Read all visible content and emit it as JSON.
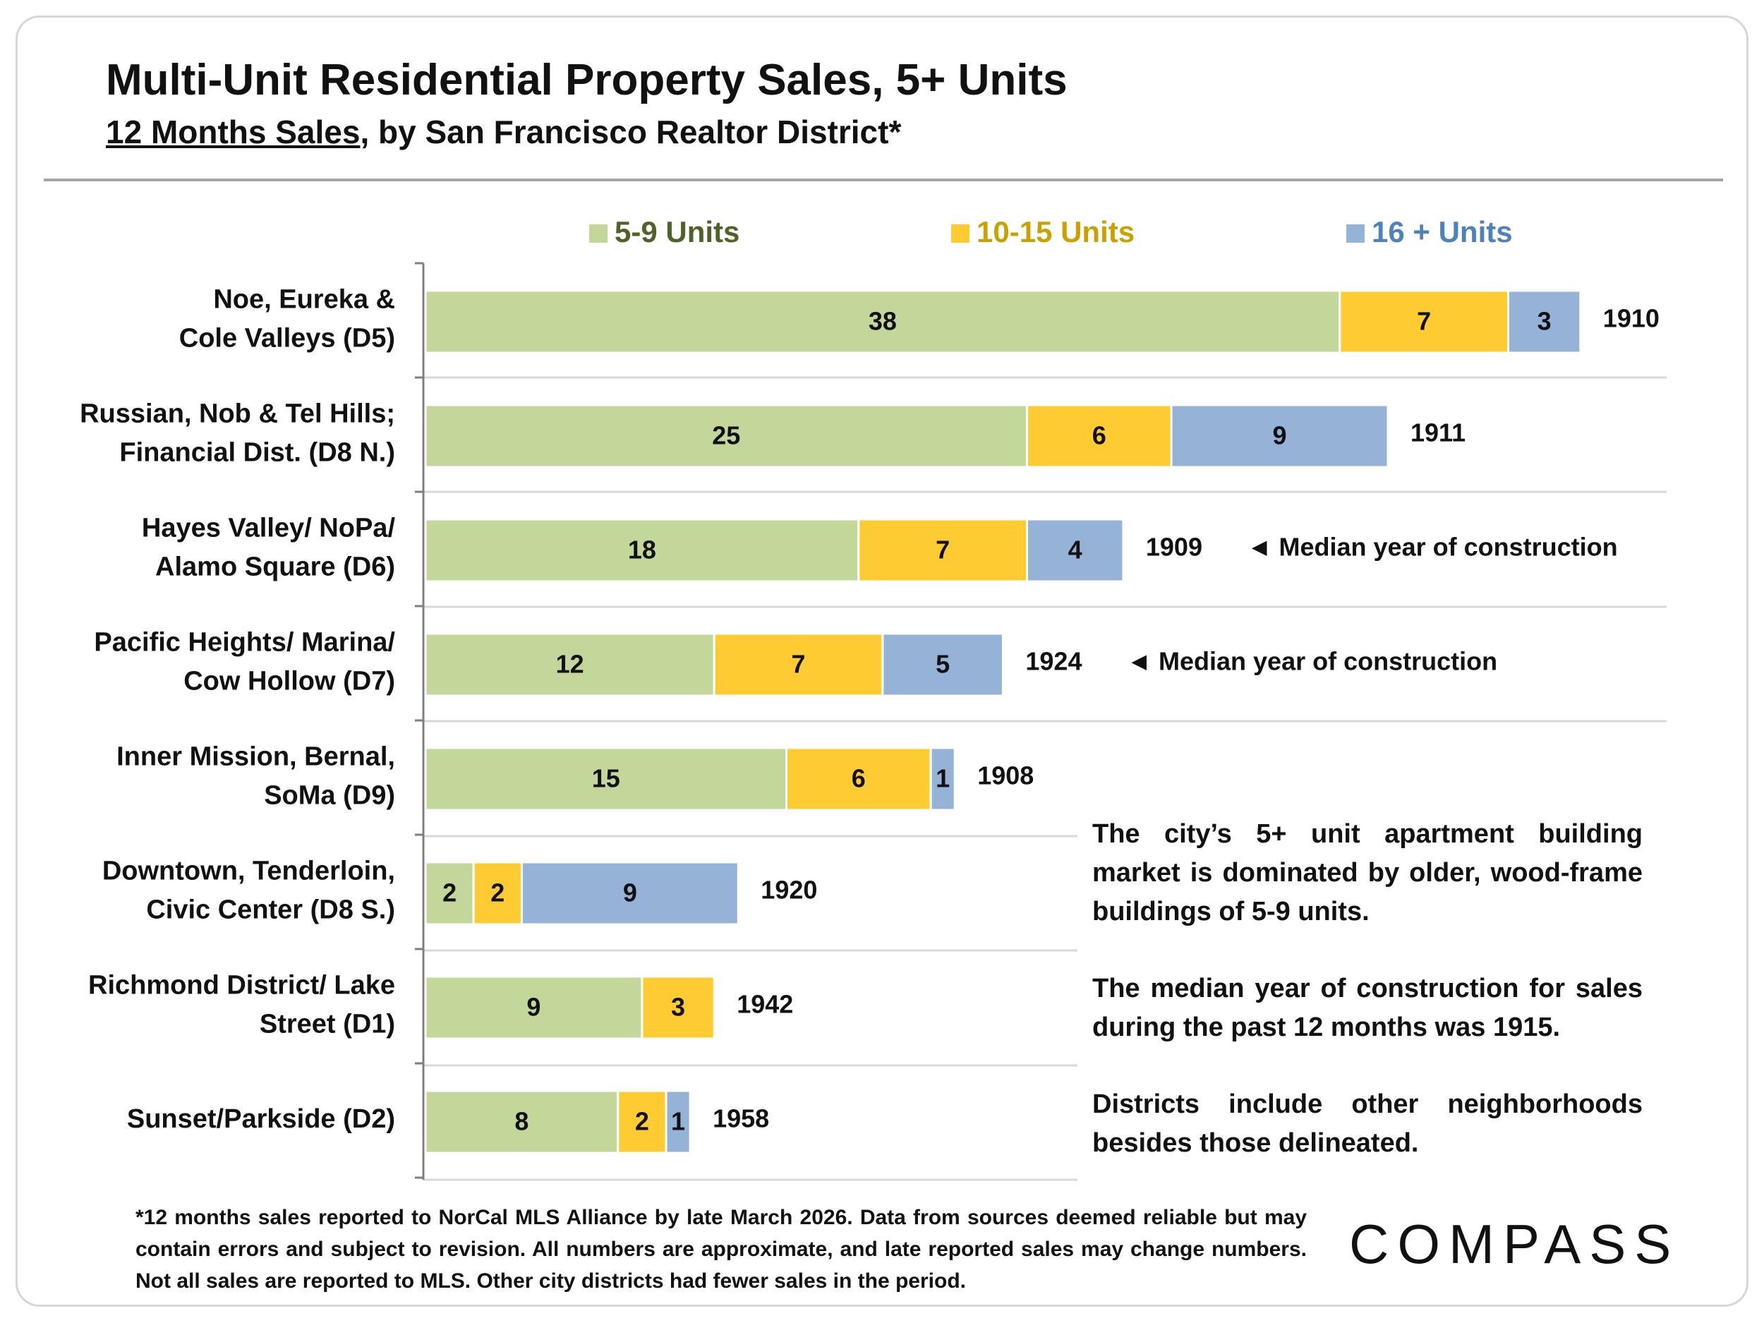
{
  "title": "Multi-Unit Residential Property Sales, 5+ Units",
  "subtitle_underlined": "12 Months Sales",
  "subtitle_rest": ", by San Francisco Realtor District*",
  "colors": {
    "units_5_9": "#c4d79b",
    "units_10_15": "#ffcb33",
    "units_16_plus": "#95b3d7",
    "legend_5_9_text": "#4f6228",
    "legend_10_15_text": "#c9a100",
    "legend_16_text": "#4f81bd"
  },
  "chart_data": {
    "type": "bar",
    "orientation": "horizontal",
    "stacked": true,
    "title": "Multi-Unit Residential Property Sales, 5+ Units",
    "categories": [
      [
        "Noe, Eureka &",
        "Cole Valleys (D5)"
      ],
      [
        "Russian, Nob & Tel Hills;",
        "Financial Dist. (D8 N.)"
      ],
      [
        "Hayes Valley/ NoPa/",
        "Alamo Square (D6)"
      ],
      [
        "Pacific Heights/ Marina/",
        "Cow Hollow (D7)"
      ],
      [
        "Inner Mission, Bernal,",
        "SoMa (D9)"
      ],
      [
        "Downtown, Tenderloin,",
        "Civic Center (D8 S.)"
      ],
      [
        "Richmond District/ Lake",
        "Street (D1)"
      ],
      [
        "Sunset/Parkside (D2)"
      ]
    ],
    "series": [
      {
        "name": "5-9 Units",
        "values": [
          38,
          25,
          18,
          12,
          15,
          2,
          9,
          8
        ]
      },
      {
        "name": "10-15 Units",
        "values": [
          7,
          6,
          7,
          7,
          6,
          2,
          3,
          2
        ]
      },
      {
        "name": "16 + Units",
        "values": [
          3,
          9,
          4,
          5,
          1,
          9,
          0,
          1
        ]
      }
    ],
    "median_year": [
      "1910",
      "1911",
      "1909",
      "1924",
      "1908",
      "1920",
      "1942",
      "1958"
    ],
    "annotations": [
      {
        "row": 2,
        "text": "◄ Median year of construction"
      },
      {
        "row": 3,
        "text": "◄ Median year of construction"
      }
    ],
    "legend": "top",
    "xlim": [
      0,
      49
    ]
  },
  "note": [
    "The city’s 5+ unit apartment building market is dominated by older, wood-frame buildings of 5-9 units.",
    "The median year of construction for sales during the past 12 months was 1915.",
    "Districts include other neighborhoods besides those delineated."
  ],
  "footnote": "*12 months sales reported to NorCal MLS Alliance by late March 2026. Data from sources deemed reliable but may contain errors and subject to revision. All numbers are approximate, and late reported sales may change numbers. Not all sales are reported to MLS. Other city districts had fewer sales in the period.",
  "logo": "COMPASS"
}
